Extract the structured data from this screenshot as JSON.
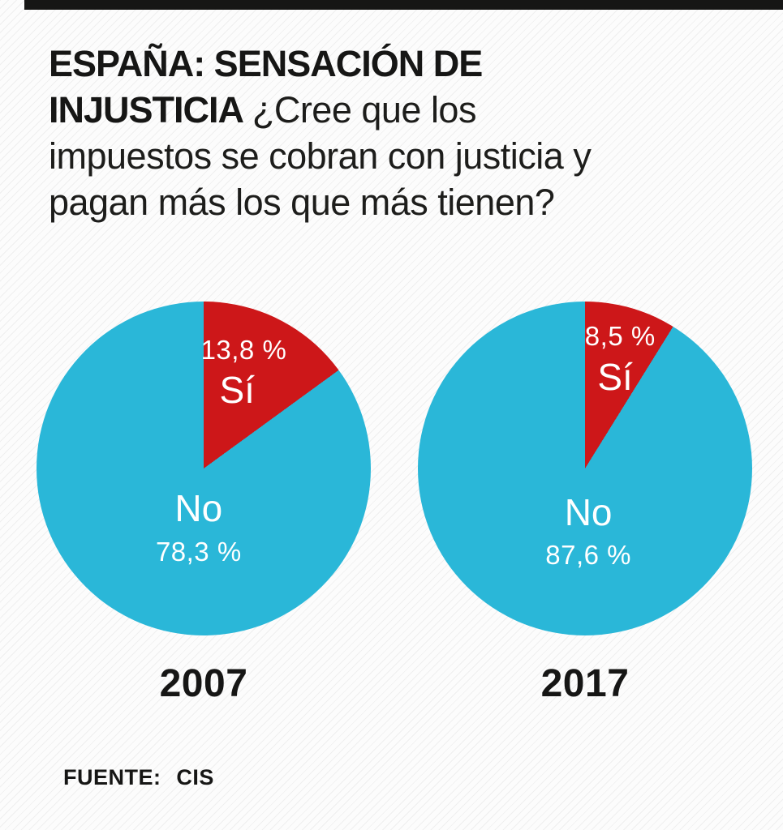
{
  "header": {
    "title_lines": [
      {
        "bold": "ESPAÑA: SENSACIÓN DE",
        "regular": ""
      },
      {
        "bold": "INJUSTICIA",
        "regular": "¿Cree que los"
      },
      {
        "bold": "",
        "regular": "impuestos se cobran con justicia y"
      },
      {
        "bold": "",
        "regular": "pagan más los que más tienen?"
      }
    ]
  },
  "footer": {
    "source_label": "FUENTE:",
    "source_value": "CIS"
  },
  "colors": {
    "yes_slice": "#cd1719",
    "no_slice": "#2ab7d8",
    "text": "#161615",
    "label_on_slice": "#ffffff",
    "top_bar": "#161615"
  },
  "chart_data": [
    {
      "type": "pie",
      "title": "2007",
      "categories": [
        "Sí",
        "No"
      ],
      "values": [
        13.8,
        78.3
      ],
      "value_labels": [
        "13,8 %",
        "78,3 %"
      ],
      "colors": [
        "#cd1719",
        "#2ab7d8"
      ],
      "start_angle": "12 o'clock, clockwise",
      "labels_position": "inside",
      "legend_position": "none"
    },
    {
      "type": "pie",
      "title": "2017",
      "categories": [
        "Sí",
        "No"
      ],
      "values": [
        8.5,
        87.6
      ],
      "value_labels": [
        "8,5 %",
        "87,6 %"
      ],
      "colors": [
        "#cd1719",
        "#2ab7d8"
      ],
      "start_angle": "12 o'clock, clockwise",
      "labels_position": "inside",
      "legend_position": "none"
    }
  ]
}
